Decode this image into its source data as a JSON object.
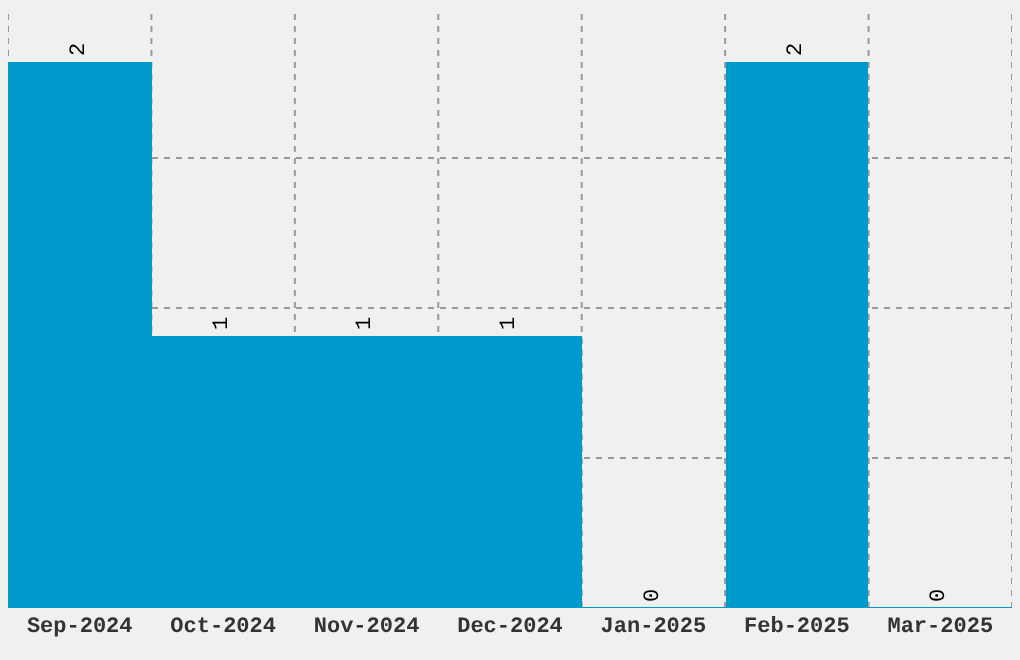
{
  "chart_data": {
    "type": "bar",
    "categories": [
      "Sep-2024",
      "Oct-2024",
      "Nov-2024",
      "Dec-2024",
      "Jan-2025",
      "Feb-2025",
      "Mar-2025"
    ],
    "values": [
      2,
      1,
      1,
      1,
      0,
      2,
      0
    ],
    "color": "#0099cc",
    "data_labels": true,
    "grid": true,
    "legend": false,
    "tick_labels": "x",
    "ylim": [
      0,
      2.2
    ],
    "yticks": [
      {
        "value": 0,
        "label": null
      },
      {
        "value": 0.55,
        "label": null
      },
      {
        "value": 1.1,
        "label": null
      },
      {
        "value": 1.65,
        "label": null
      }
    ]
  }
}
